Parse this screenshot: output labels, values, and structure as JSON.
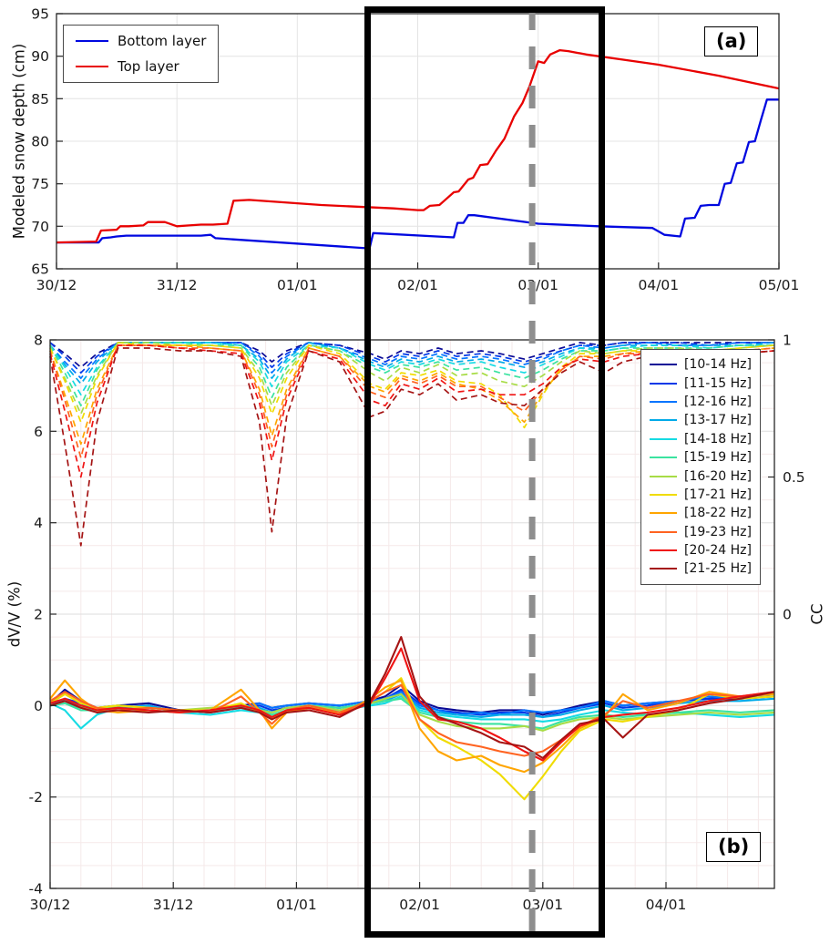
{
  "figure": {
    "panel_a_label": "(a)",
    "panel_b_label": "(b)",
    "background": "#ffffff"
  },
  "chart_data": [
    {
      "type": "line",
      "panel": "a",
      "ylabel": "Modeled snow depth (cm)",
      "ylim": [
        65,
        95
      ],
      "yticks": [
        65,
        70,
        75,
        80,
        85,
        90,
        95
      ],
      "xticklabels": [
        "30/12",
        "31/12",
        "01/01",
        "02/01",
        "03/01",
        "04/01",
        "05/01"
      ],
      "xlim_days": [
        0,
        6
      ],
      "grid": true,
      "legend_position": "top-left",
      "series": [
        {
          "name": "Bottom layer",
          "color": "#0008E0",
          "x": [
            0,
            0.35,
            0.38,
            0.45,
            0.5,
            0.58,
            1.2,
            1.28,
            1.32,
            2.6,
            2.63,
            3.3,
            3.33,
            3.38,
            3.42,
            3.47,
            4.0,
            4.5,
            4.95,
            5.05,
            5.18,
            5.22,
            5.3,
            5.35,
            5.42,
            5.5,
            5.55,
            5.6,
            5.65,
            5.7,
            5.75,
            5.8,
            5.85,
            5.9,
            6.0
          ],
          "y": [
            68.1,
            68.1,
            68.6,
            68.7,
            68.8,
            68.9,
            68.9,
            69.0,
            68.6,
            67.4,
            69.2,
            68.7,
            70.4,
            70.4,
            71.3,
            71.3,
            70.3,
            70.0,
            69.8,
            69.0,
            68.8,
            70.9,
            71.0,
            72.4,
            72.5,
            72.5,
            75.0,
            75.1,
            77.4,
            77.5,
            79.9,
            80.0,
            82.5,
            84.9,
            84.9
          ]
        },
        {
          "name": "Top layer",
          "color": "#E80000",
          "x": [
            0,
            0.33,
            0.37,
            0.5,
            0.53,
            0.6,
            0.72,
            0.76,
            0.9,
            1.0,
            1.1,
            1.2,
            1.3,
            1.42,
            1.47,
            1.6,
            2.2,
            2.8,
            3.0,
            3.05,
            3.1,
            3.18,
            3.22,
            3.3,
            3.34,
            3.42,
            3.46,
            3.52,
            3.58,
            3.65,
            3.72,
            3.8,
            3.87,
            3.93,
            4.0,
            4.05,
            4.1,
            4.18,
            4.25,
            4.4,
            4.7,
            5.0,
            5.5,
            6.0
          ],
          "y": [
            68.1,
            68.2,
            69.5,
            69.6,
            70.0,
            70.0,
            70.1,
            70.5,
            70.5,
            70.0,
            70.1,
            70.2,
            70.2,
            70.3,
            73.0,
            73.1,
            72.5,
            72.1,
            71.9,
            71.9,
            72.4,
            72.5,
            73.0,
            74.0,
            74.1,
            75.5,
            75.7,
            77.2,
            77.3,
            78.9,
            80.3,
            82.9,
            84.5,
            86.5,
            89.4,
            89.2,
            90.2,
            90.7,
            90.6,
            90.2,
            89.6,
            89.0,
            87.7,
            86.2
          ]
        }
      ]
    },
    {
      "type": "line",
      "panel": "b",
      "ylabel_left": "dV/V (%)",
      "ylabel_right": "CC",
      "ylim": [
        -4,
        8
      ],
      "yticks": [
        -4,
        -2,
        0,
        2,
        4,
        6,
        8
      ],
      "cc_ticks": [
        0,
        0.5,
        1
      ],
      "cc_axis": {
        "dvv_at_cc0": 2,
        "dvv_at_cc1": 8
      },
      "xticklabels": [
        "30/12",
        "31/12",
        "01/01",
        "02/01",
        "03/01",
        "04/01"
      ],
      "xlim_days": [
        0,
        5.88
      ],
      "grid": true,
      "legend_position": "right",
      "line_styles": {
        "cc": "dashed",
        "dvv": "solid"
      },
      "bands": [
        {
          "label": "[10-14 Hz]",
          "color": "#0A0A96"
        },
        {
          "label": "[11-15 Hz]",
          "color": "#0038E8"
        },
        {
          "label": "[12-16 Hz]",
          "color": "#0575FF"
        },
        {
          "label": "[13-17 Hz]",
          "color": "#00AAE8"
        },
        {
          "label": "[14-18 Hz]",
          "color": "#16DBE3"
        },
        {
          "label": "[15-19 Hz]",
          "color": "#3BE3A0"
        },
        {
          "label": "[16-20 Hz]",
          "color": "#A8DC46"
        },
        {
          "label": "[17-21 Hz]",
          "color": "#F0DC00"
        },
        {
          "label": "[18-22 Hz]",
          "color": "#FFA500"
        },
        {
          "label": "[19-23 Hz]",
          "color": "#FF6320"
        },
        {
          "label": "[20-24 Hz]",
          "color": "#F01414"
        },
        {
          "label": "[21-25 Hz]",
          "color": "#A51414"
        }
      ],
      "x": [
        0,
        0.12,
        0.25,
        0.38,
        0.55,
        0.8,
        1.05,
        1.3,
        1.55,
        1.7,
        1.8,
        1.92,
        2.1,
        2.35,
        2.6,
        2.72,
        2.85,
        3.0,
        3.15,
        3.3,
        3.5,
        3.65,
        3.85,
        4.0,
        4.15,
        4.3,
        4.5,
        4.65,
        4.85,
        5.1,
        5.35,
        5.6,
        5.88
      ],
      "cc_series": [
        [
          0.99,
          0.95,
          0.9,
          0.95,
          0.99,
          0.99,
          0.99,
          0.99,
          0.99,
          0.96,
          0.92,
          0.96,
          0.99,
          0.98,
          0.95,
          0.93,
          0.96,
          0.95,
          0.97,
          0.95,
          0.96,
          0.95,
          0.93,
          0.95,
          0.97,
          0.99,
          0.98,
          0.99,
          0.99,
          0.99,
          0.99,
          0.99,
          0.99
        ],
        [
          0.99,
          0.94,
          0.88,
          0.94,
          0.99,
          0.99,
          0.99,
          0.99,
          0.99,
          0.95,
          0.9,
          0.95,
          0.99,
          0.98,
          0.94,
          0.92,
          0.95,
          0.94,
          0.96,
          0.94,
          0.95,
          0.94,
          0.92,
          0.94,
          0.96,
          0.98,
          0.98,
          0.99,
          0.99,
          0.99,
          0.98,
          0.99,
          0.99
        ],
        [
          0.98,
          0.92,
          0.86,
          0.93,
          0.99,
          0.99,
          0.99,
          0.99,
          0.99,
          0.94,
          0.88,
          0.94,
          0.99,
          0.97,
          0.93,
          0.91,
          0.94,
          0.93,
          0.95,
          0.93,
          0.94,
          0.93,
          0.91,
          0.93,
          0.96,
          0.98,
          0.97,
          0.98,
          0.99,
          0.98,
          0.98,
          0.99,
          0.99
        ],
        [
          0.98,
          0.91,
          0.84,
          0.92,
          0.99,
          0.99,
          0.99,
          0.99,
          0.98,
          0.93,
          0.86,
          0.93,
          0.99,
          0.97,
          0.92,
          0.9,
          0.93,
          0.92,
          0.94,
          0.92,
          0.93,
          0.92,
          0.9,
          0.92,
          0.95,
          0.97,
          0.97,
          0.98,
          0.98,
          0.98,
          0.98,
          0.98,
          0.99
        ],
        [
          0.98,
          0.9,
          0.8,
          0.9,
          0.99,
          0.99,
          0.99,
          0.99,
          0.98,
          0.92,
          0.83,
          0.92,
          0.98,
          0.97,
          0.91,
          0.89,
          0.92,
          0.91,
          0.93,
          0.91,
          0.92,
          0.9,
          0.88,
          0.91,
          0.94,
          0.97,
          0.96,
          0.97,
          0.98,
          0.98,
          0.97,
          0.98,
          0.98
        ],
        [
          0.98,
          0.88,
          0.76,
          0.89,
          0.99,
          0.99,
          0.99,
          0.98,
          0.98,
          0.9,
          0.79,
          0.9,
          0.98,
          0.96,
          0.9,
          0.88,
          0.91,
          0.9,
          0.92,
          0.89,
          0.9,
          0.88,
          0.86,
          0.89,
          0.93,
          0.96,
          0.96,
          0.97,
          0.97,
          0.97,
          0.97,
          0.98,
          0.98
        ],
        [
          0.97,
          0.86,
          0.73,
          0.87,
          0.99,
          0.99,
          0.98,
          0.98,
          0.97,
          0.88,
          0.76,
          0.88,
          0.98,
          0.96,
          0.88,
          0.85,
          0.9,
          0.88,
          0.91,
          0.87,
          0.88,
          0.85,
          0.83,
          0.87,
          0.92,
          0.96,
          0.95,
          0.96,
          0.97,
          0.97,
          0.96,
          0.97,
          0.98
        ],
        [
          0.97,
          0.85,
          0.7,
          0.86,
          0.99,
          0.98,
          0.98,
          0.98,
          0.97,
          0.86,
          0.73,
          0.86,
          0.98,
          0.95,
          0.84,
          0.82,
          0.88,
          0.87,
          0.89,
          0.85,
          0.84,
          0.8,
          0.68,
          0.8,
          0.9,
          0.95,
          0.95,
          0.96,
          0.96,
          0.96,
          0.96,
          0.97,
          0.98
        ],
        [
          0.96,
          0.8,
          0.62,
          0.82,
          0.98,
          0.98,
          0.98,
          0.97,
          0.96,
          0.82,
          0.65,
          0.82,
          0.97,
          0.94,
          0.83,
          0.81,
          0.87,
          0.85,
          0.88,
          0.84,
          0.82,
          0.78,
          0.7,
          0.81,
          0.89,
          0.94,
          0.94,
          0.95,
          0.96,
          0.96,
          0.95,
          0.96,
          0.97
        ],
        [
          0.96,
          0.78,
          0.57,
          0.8,
          0.98,
          0.98,
          0.97,
          0.97,
          0.96,
          0.8,
          0.61,
          0.8,
          0.97,
          0.94,
          0.81,
          0.79,
          0.86,
          0.84,
          0.87,
          0.83,
          0.83,
          0.79,
          0.74,
          0.82,
          0.89,
          0.94,
          0.93,
          0.95,
          0.95,
          0.95,
          0.95,
          0.96,
          0.97
        ],
        [
          0.95,
          0.74,
          0.5,
          0.77,
          0.98,
          0.98,
          0.97,
          0.96,
          0.95,
          0.77,
          0.56,
          0.78,
          0.96,
          0.93,
          0.78,
          0.76,
          0.84,
          0.82,
          0.86,
          0.81,
          0.82,
          0.8,
          0.8,
          0.84,
          0.9,
          0.93,
          0.92,
          0.94,
          0.95,
          0.95,
          0.94,
          0.95,
          0.96
        ],
        [
          0.94,
          0.62,
          0.25,
          0.7,
          0.97,
          0.97,
          0.96,
          0.96,
          0.94,
          0.7,
          0.3,
          0.72,
          0.96,
          0.92,
          0.72,
          0.74,
          0.82,
          0.8,
          0.84,
          0.78,
          0.8,
          0.77,
          0.76,
          0.82,
          0.88,
          0.92,
          0.88,
          0.92,
          0.94,
          0.94,
          0.93,
          0.95,
          0.96
        ]
      ],
      "dvv_series": [
        [
          0.05,
          0.35,
          0.1,
          -0.05,
          0.0,
          0.05,
          -0.1,
          -0.15,
          0.0,
          0.05,
          -0.05,
          0.0,
          0.05,
          0.0,
          0.1,
          0.2,
          0.45,
          0.1,
          -0.05,
          -0.1,
          -0.15,
          -0.1,
          -0.1,
          -0.2,
          -0.1,
          0.0,
          0.1,
          0.0,
          0.05,
          0.1,
          0.15,
          0.2,
          0.25
        ],
        [
          0.0,
          0.15,
          0.05,
          -0.1,
          -0.05,
          0.0,
          -0.15,
          -0.1,
          -0.05,
          0.0,
          -0.1,
          -0.05,
          0.0,
          -0.05,
          0.05,
          0.15,
          0.35,
          0.05,
          -0.1,
          -0.15,
          -0.2,
          -0.15,
          -0.15,
          -0.25,
          -0.15,
          -0.05,
          0.05,
          -0.05,
          0.0,
          0.1,
          0.15,
          0.15,
          0.2
        ],
        [
          0.05,
          0.1,
          0.0,
          -0.05,
          0.0,
          -0.05,
          -0.1,
          -0.15,
          -0.05,
          0.05,
          -0.05,
          0.0,
          0.05,
          0.0,
          0.1,
          0.15,
          0.3,
          0.0,
          -0.1,
          -0.2,
          -0.15,
          -0.2,
          -0.1,
          -0.15,
          -0.1,
          -0.05,
          0.1,
          0.0,
          0.05,
          0.1,
          0.2,
          0.15,
          0.2
        ],
        [
          0.0,
          0.05,
          -0.05,
          -0.1,
          -0.05,
          0.0,
          -0.15,
          -0.1,
          0.0,
          -0.05,
          -0.15,
          -0.05,
          0.0,
          -0.05,
          0.05,
          0.1,
          0.25,
          -0.05,
          -0.15,
          -0.2,
          -0.25,
          -0.2,
          -0.2,
          -0.25,
          -0.2,
          -0.1,
          0.0,
          -0.1,
          -0.05,
          0.05,
          0.1,
          0.1,
          0.15
        ],
        [
          0.05,
          -0.1,
          -0.5,
          -0.2,
          -0.05,
          -0.1,
          -0.15,
          -0.2,
          -0.1,
          -0.15,
          -0.25,
          -0.1,
          -0.05,
          -0.1,
          0.0,
          0.05,
          0.2,
          -0.1,
          -0.2,
          -0.25,
          -0.3,
          -0.3,
          -0.3,
          -0.35,
          -0.3,
          -0.2,
          -0.1,
          -0.15,
          -0.2,
          -0.15,
          -0.2,
          -0.25,
          -0.2
        ],
        [
          0.0,
          0.05,
          -0.1,
          -0.1,
          0.0,
          -0.05,
          -0.1,
          -0.1,
          -0.05,
          -0.1,
          -0.2,
          -0.1,
          0.0,
          -0.05,
          0.05,
          0.1,
          0.15,
          -0.15,
          -0.25,
          -0.35,
          -0.4,
          -0.4,
          -0.45,
          -0.5,
          -0.35,
          -0.25,
          -0.2,
          -0.25,
          -0.2,
          -0.15,
          -0.1,
          -0.15,
          -0.1
        ],
        [
          0.0,
          0.1,
          -0.05,
          -0.05,
          0.0,
          -0.05,
          -0.1,
          -0.05,
          0.0,
          -0.1,
          -0.15,
          -0.05,
          0.0,
          -0.1,
          0.05,
          0.15,
          0.25,
          -0.2,
          -0.35,
          -0.45,
          -0.5,
          -0.5,
          -0.45,
          -0.55,
          -0.4,
          -0.3,
          -0.25,
          -0.3,
          -0.25,
          -0.2,
          -0.15,
          -0.2,
          -0.15
        ],
        [
          0.05,
          0.25,
          0.05,
          -0.05,
          0.0,
          -0.05,
          -0.1,
          -0.1,
          0.05,
          -0.15,
          -0.3,
          -0.1,
          -0.05,
          -0.15,
          0.1,
          0.3,
          0.6,
          -0.3,
          -0.7,
          -0.9,
          -1.2,
          -1.5,
          -2.05,
          -1.55,
          -1.0,
          -0.55,
          -0.3,
          -0.35,
          -0.25,
          -0.1,
          0.25,
          0.15,
          0.2
        ],
        [
          0.15,
          0.55,
          0.15,
          -0.1,
          -0.15,
          -0.1,
          -0.15,
          -0.1,
          0.35,
          -0.1,
          -0.5,
          -0.15,
          -0.05,
          -0.2,
          0.15,
          0.4,
          0.55,
          -0.5,
          -1.0,
          -1.2,
          -1.1,
          -1.3,
          -1.45,
          -1.25,
          -0.9,
          -0.5,
          -0.25,
          0.25,
          -0.1,
          0.05,
          0.3,
          0.2,
          0.25
        ],
        [
          0.1,
          0.3,
          0.1,
          -0.05,
          -0.1,
          -0.05,
          -0.1,
          -0.15,
          0.2,
          -0.15,
          -0.4,
          -0.1,
          0.0,
          -0.15,
          0.1,
          0.3,
          0.45,
          -0.3,
          -0.6,
          -0.8,
          -0.9,
          -1.0,
          -1.1,
          -1.0,
          -0.75,
          -0.45,
          -0.2,
          0.1,
          -0.05,
          0.1,
          0.25,
          0.2,
          0.3
        ],
        [
          0.05,
          0.15,
          0.0,
          -0.1,
          -0.05,
          -0.1,
          -0.15,
          -0.1,
          0.0,
          -0.1,
          -0.25,
          -0.1,
          -0.05,
          -0.2,
          0.05,
          0.6,
          1.25,
          0.1,
          -0.3,
          -0.35,
          -0.5,
          -0.7,
          -1.0,
          -1.2,
          -0.8,
          -0.45,
          -0.25,
          -0.2,
          -0.15,
          -0.05,
          0.1,
          0.2,
          0.3
        ],
        [
          0.0,
          0.1,
          -0.05,
          -0.15,
          -0.1,
          -0.15,
          -0.1,
          -0.15,
          -0.05,
          -0.15,
          -0.3,
          -0.15,
          -0.1,
          -0.25,
          0.1,
          0.7,
          1.5,
          0.2,
          -0.25,
          -0.4,
          -0.6,
          -0.8,
          -0.9,
          -1.15,
          -0.75,
          -0.4,
          -0.3,
          -0.7,
          -0.2,
          -0.1,
          0.05,
          0.15,
          0.3
        ]
      ]
    }
  ],
  "annotations": {
    "highlight_box": {
      "x_start_day": 2.585,
      "x_end_day": 4.53,
      "color": "#000000"
    },
    "event_line": {
      "day": 3.95,
      "color": "#8e8e8e",
      "style": "dashed"
    }
  }
}
